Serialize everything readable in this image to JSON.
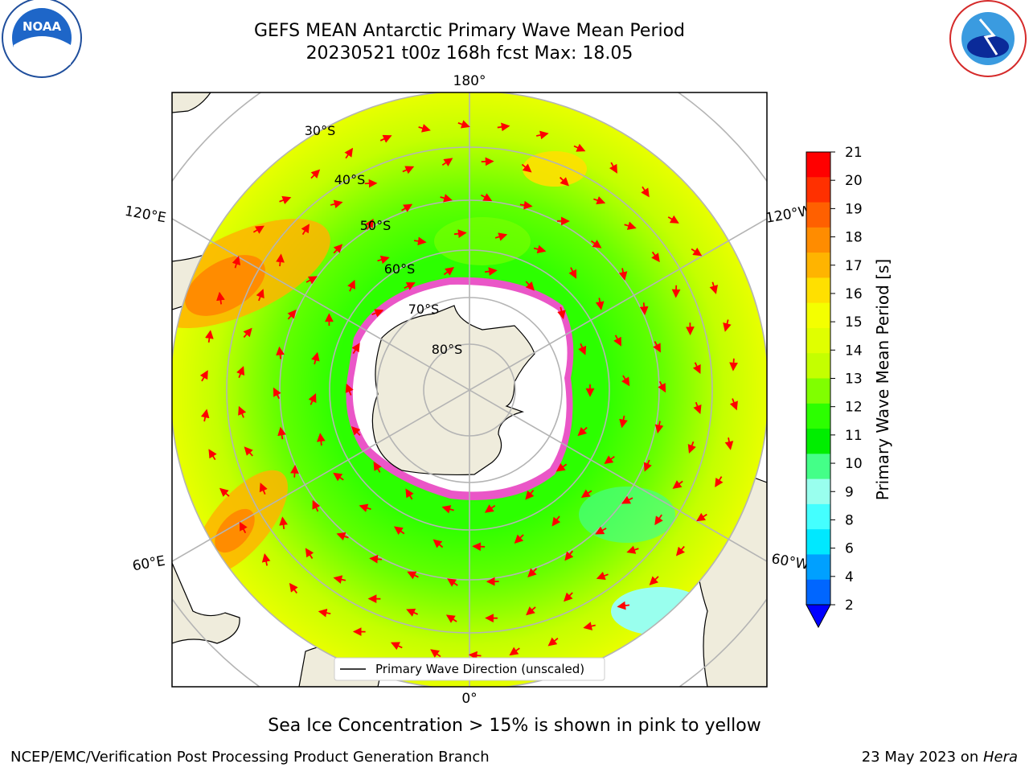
{
  "title": {
    "line1": "GEFS MEAN Antarctic Primary Wave Mean Period",
    "line2": "20230521 t00z 168h fcst   Max: 18.05"
  },
  "map": {
    "projection": "south-polar-stereographic",
    "lon_labels": {
      "top": "180°",
      "bottom": "0°",
      "left_upper": "120°E",
      "left_lower": "60°E",
      "right_upper": "120°W",
      "right_lower": "60°W"
    },
    "lat_labels": [
      "30°S",
      "40°S",
      "50°S",
      "60°S",
      "70°S",
      "80°S"
    ],
    "legend_label": "Primary Wave Direction (unscaled)",
    "colors": {
      "land": "#efecdc",
      "ocean_fill": "#ffffff",
      "arrow": "#ff0000",
      "sea_ice": "#ff44dd",
      "grid": "#b4b4b4"
    }
  },
  "colorbar": {
    "title": "Primary Wave Mean Period [s]",
    "ticks": [
      "21",
      "20",
      "19",
      "18",
      "17",
      "16",
      "15",
      "14",
      "13",
      "12",
      "11",
      "10",
      "9",
      "8",
      "6",
      "4",
      "2"
    ],
    "colors": [
      "#ff0000",
      "#ff3000",
      "#ff6000",
      "#ff8c00",
      "#ffb400",
      "#ffe000",
      "#f4ff00",
      "#e0ff00",
      "#c4ff00",
      "#80ff00",
      "#2cff00",
      "#00ee00",
      "#44ff88",
      "#99ffee",
      "#44ffff",
      "#00e8ff",
      "#00a0ff",
      "#0066ff"
    ],
    "under_color": "#0000ff"
  },
  "notes": {
    "sea_ice": "Sea Ice Concentration > 15% is shown in pink to yellow",
    "credit": "NCEP/EMC/Verification Post Processing Product Generation Branch",
    "date": "23 May 2023 on ",
    "machine": "Hera"
  },
  "logos": {
    "noaa": "NOAA",
    "nws_ring": "NATIONAL WEATHER SERVICE",
    "noaa_ring": "NATIONAL OCEANIC AND ATMOSPHERIC ADMINISTRATION"
  }
}
